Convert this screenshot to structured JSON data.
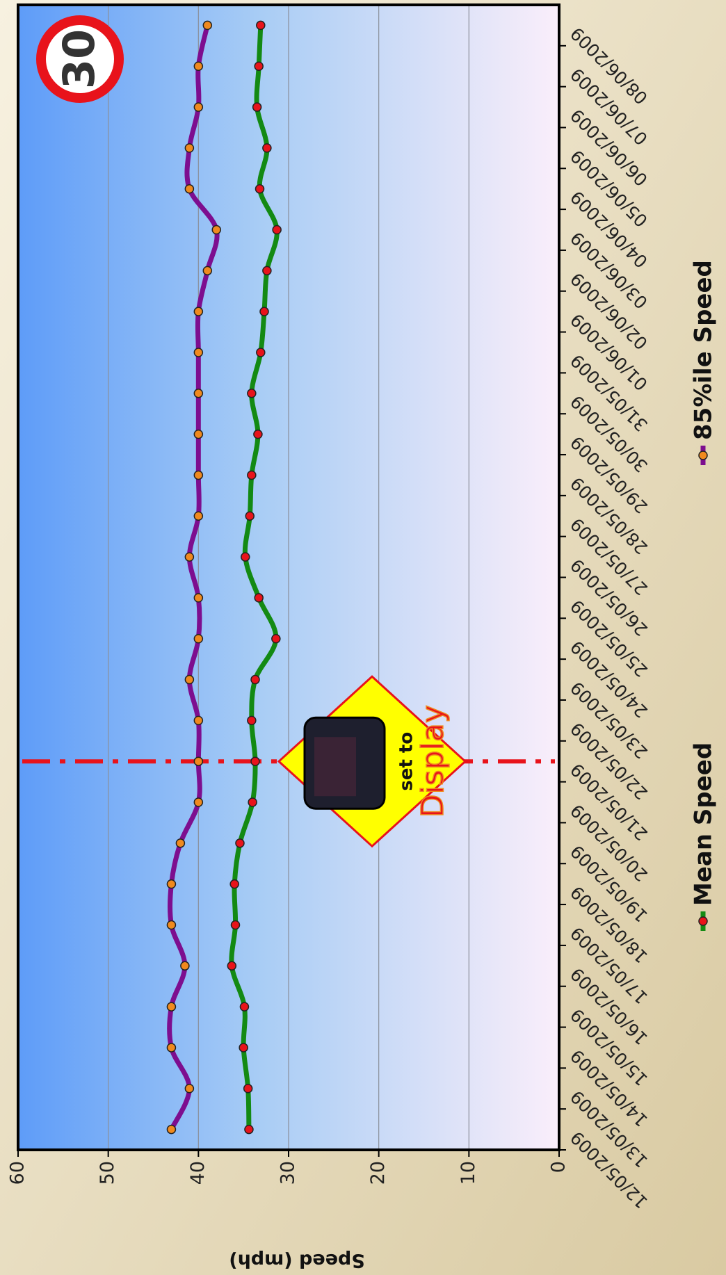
{
  "chart_data": {
    "type": "line",
    "y_label": "Speed (mph)",
    "x": [
      "12/05/2009",
      "13/05/2009",
      "14/05/2009",
      "15/05/2009",
      "16/05/2009",
      "17/05/2009",
      "18/05/2009",
      "19/05/2009",
      "20/05/2009",
      "21/05/2009",
      "22/05/2009",
      "23/05/2009",
      "24/05/2009",
      "25/05/2009",
      "26/05/2009",
      "27/05/2009",
      "28/05/2009",
      "29/05/2009",
      "30/05/2009",
      "31/05/2009",
      "01/06/2009",
      "02/06/2009",
      "03/06/2009",
      "04/06/2009",
      "05/06/2009",
      "06/06/2009",
      "07/06/2009",
      "08/06/2009"
    ],
    "series": [
      {
        "name": "Mean Speed",
        "color": "#138a13",
        "marker_color": "#e8131b",
        "values": [
          34.4,
          34.5,
          35,
          34.9,
          36.3,
          35.9,
          36,
          35.4,
          34,
          33.7,
          34.1,
          33.7,
          31.4,
          33.3,
          34.8,
          34.3,
          34.1,
          33.4,
          34.1,
          33.1,
          32.7,
          32.4,
          31.3,
          33.2,
          32.4,
          33.5,
          33.3,
          33.1
        ]
      },
      {
        "name": "85%ile Speed",
        "color": "#7d0e8f",
        "marker_color": "#f08a1e",
        "values": [
          43,
          41,
          43,
          43,
          41.5,
          43,
          43,
          42,
          40,
          40,
          40,
          41,
          40,
          40,
          41,
          40,
          40,
          40,
          40,
          40,
          40,
          39,
          38,
          41,
          41,
          40,
          40,
          39
        ]
      }
    ],
    "ylim": [
      0,
      60
    ],
    "yticks": [
      0,
      10,
      20,
      30,
      40,
      50,
      60
    ],
    "grid": true,
    "legend": "bottom",
    "event_line": {
      "x": "21/05/2009",
      "color": "#e8131b"
    },
    "annotation": [
      "set to",
      "Display"
    ],
    "speed_limit_sign": "30"
  }
}
